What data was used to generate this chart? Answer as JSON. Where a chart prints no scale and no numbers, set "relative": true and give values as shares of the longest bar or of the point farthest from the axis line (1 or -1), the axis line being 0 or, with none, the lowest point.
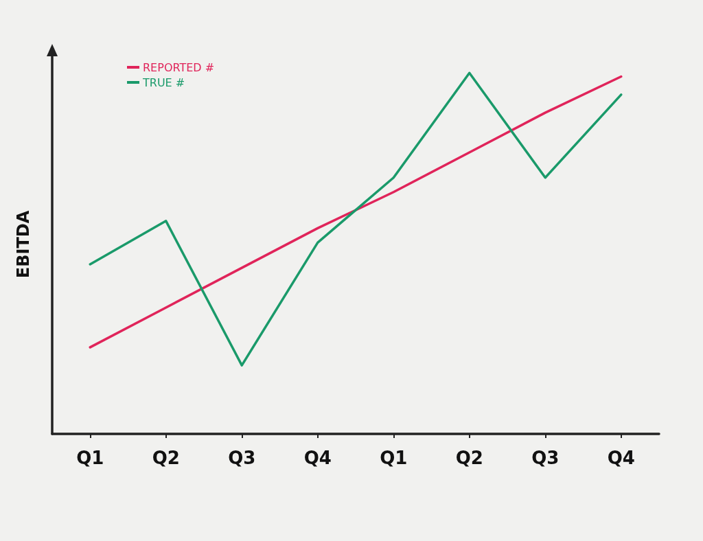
{
  "chart_data": {
    "type": "line",
    "ylabel": "EBITDA",
    "relative": true,
    "categories": [
      "Q1",
      "Q2",
      "Q3",
      "Q4",
      "Q1",
      "Q2",
      "Q3",
      "Q4"
    ],
    "series": [
      {
        "name": "REPORTED #",
        "color": "#e0245a",
        "values": [
          0.24,
          0.35,
          0.46,
          0.57,
          0.67,
          0.78,
          0.89,
          0.99
        ]
      },
      {
        "name": "TRUE #",
        "color": "#1a9a6a",
        "values": [
          0.47,
          0.59,
          0.19,
          0.53,
          0.71,
          1,
          0.71,
          0.94
        ]
      }
    ],
    "legend": "top left",
    "marker": "none",
    "line_style": "solid"
  }
}
